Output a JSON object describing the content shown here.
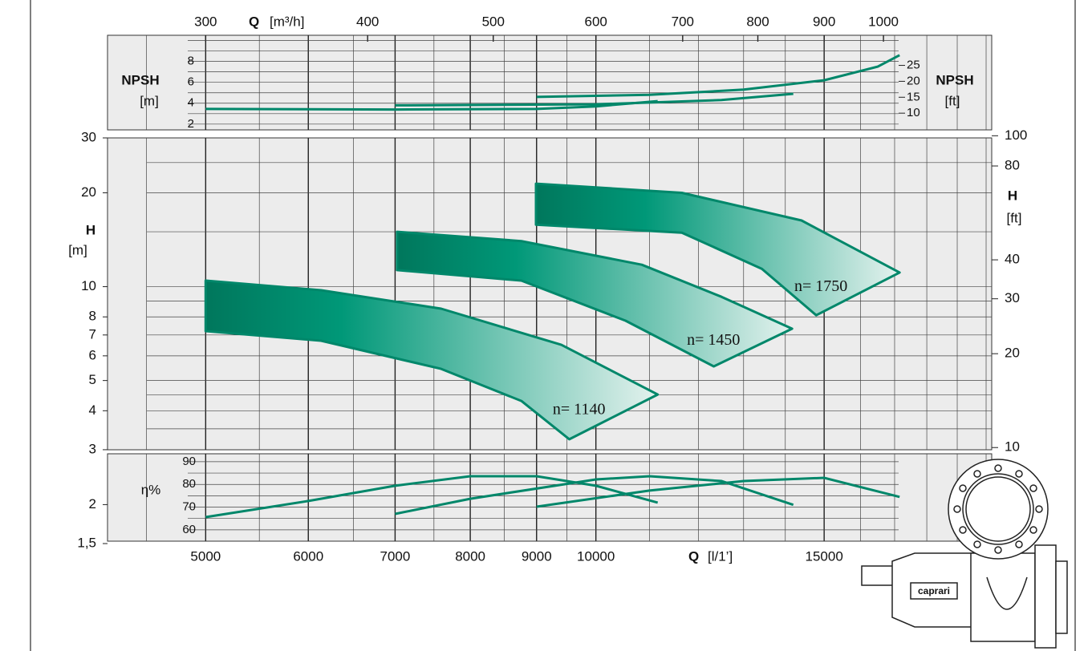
{
  "chart_data": {
    "type": "pump_curves",
    "xlim": [
      4200,
      20200
    ],
    "xticks": [
      5000,
      6000,
      7000,
      8000,
      9000,
      10000,
      15000
    ],
    "xgrid": [
      4500,
      5000,
      5500,
      6000,
      6500,
      7000,
      7500,
      8000,
      8500,
      9000,
      9500,
      10000,
      11000,
      12000,
      13000,
      14000,
      15000,
      16000,
      17000,
      18000,
      19000,
      20000
    ],
    "x_label": "Q",
    "x_unit": "[l/1’]",
    "x2lim": [
      252,
      1212
    ],
    "x2ticks": [
      300,
      400,
      500,
      600,
      700,
      800,
      900,
      1000
    ],
    "x2_label": "Q",
    "x2_unit": "[m³/h]",
    "ylim": [
      1.5,
      30
    ],
    "yticks": [
      30,
      20,
      10,
      8,
      7,
      6,
      5,
      4,
      3,
      2,
      {
        "value": 1.5,
        "label": "1,5"
      }
    ],
    "ygrid": [
      3.5,
      4,
      4.5,
      5,
      6,
      7,
      8,
      9,
      10,
      15,
      20,
      25
    ],
    "y_label": "H",
    "y_unit": "[m]",
    "y2lim": [
      4.921,
      98.43
    ],
    "y2ticks": [
      100,
      80,
      40,
      30,
      20,
      10
    ],
    "y2_label": "H",
    "y2_unit": "[ft]",
    "log_x": true,
    "log_y": true,
    "npsh": {
      "label": "NPSH",
      "unit": "[m]",
      "unit2": "[ft]",
      "ylim": [
        1.45,
        10.5
      ],
      "yticks": [
        8,
        6,
        4,
        2
      ],
      "y2lim": [
        4.757,
        34.449
      ],
      "y2ticks": [
        25,
        20,
        15,
        10
      ],
      "grid": [
        2,
        3,
        4,
        5,
        6,
        7,
        8,
        9,
        10
      ]
    },
    "eff": {
      "label": "η%",
      "ylim": [
        55,
        93.5
      ],
      "yticks": [
        90,
        80,
        70,
        60
      ],
      "grid": [
        60,
        65,
        70,
        75,
        80,
        85,
        90
      ]
    },
    "series": [
      {
        "name": "n= 1140",
        "color": "#00876a",
        "upper": {
          "q": [
            5000,
            6138,
            7597,
            9405,
            11160
          ],
          "h": [
            10.46,
            9.74,
            8.5,
            6.51,
            4.51
          ]
        },
        "lower": {
          "q": [
            9540,
            8760,
            7597,
            6138,
            5000
          ],
          "h": [
            3.24,
            4.3,
            5.45,
            6.71,
            7.2
          ]
        },
        "npsh": {
          "q": [
            5000,
            7000,
            9000,
            10000,
            11160
          ],
          "values": [
            3.45,
            3.4,
            3.45,
            3.7,
            4.2
          ]
        },
        "eff": {
          "q": [
            5000,
            6000,
            7000,
            8000,
            9000,
            10000,
            11160
          ],
          "values": [
            65.6,
            72.7,
            79.4,
            83.6,
            83.6,
            79.4,
            72
          ]
        }
      },
      {
        "name": "n= 1450",
        "color": "#00876a",
        "upper": {
          "q": [
            7025,
            8760,
            10850,
            12500,
            14170
          ],
          "h": [
            15,
            14,
            11.76,
            9.28,
            7.33
          ]
        },
        "lower": {
          "q": [
            12330,
            10540,
            8760,
            7025
          ],
          "h": [
            5.55,
            7.78,
            10.46,
            11.3
          ]
        },
        "npsh": {
          "q": [
            7000,
            10000,
            12500,
            14200
          ],
          "values": [
            3.8,
            3.9,
            4.3,
            4.9
          ]
        },
        "eff": {
          "q": [
            7000,
            8000,
            10000,
            11000,
            12500,
            14200
          ],
          "values": [
            67,
            73.7,
            82.2,
            83.6,
            81.5,
            71
          ]
        }
      },
      {
        "name": "n= 1750",
        "color": "#00876a",
        "upper": {
          "q": [
            8990,
            11650,
            14410,
            17150
          ],
          "h": [
            21.4,
            20,
            16.3,
            11.1
          ]
        },
        "lower": {
          "q": [
            14790,
            13430,
            11650,
            8990
          ],
          "h": [
            8.1,
            11.4,
            14.9,
            15.8
          ]
        },
        "npsh": {
          "q": [
            9000,
            11000,
            13000,
            15000,
            16500,
            17150
          ],
          "values": [
            4.6,
            4.8,
            5.3,
            6.2,
            7.5,
            8.6
          ]
        },
        "eff": {
          "q": [
            9000,
            11000,
            13000,
            15000,
            17150
          ],
          "values": [
            70.2,
            77.3,
            81.5,
            82.9,
            74.5
          ]
        }
      }
    ],
    "brand": "caprari"
  }
}
